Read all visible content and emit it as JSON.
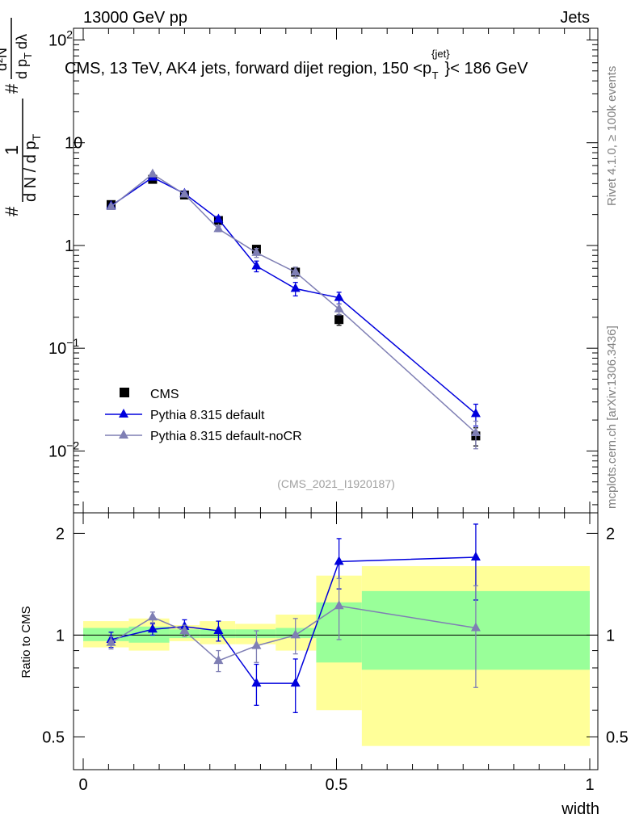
{
  "header": {
    "left": "13000 GeV pp",
    "right": "Jets",
    "title": "CMS, 13 TeV, AK4 jets, forward dijet region, 150 <p",
    "title_sup": "{jet}",
    "title_sub": "T",
    "title_end": "}< 186 GeV",
    "side_top": "Rivet 4.1.0, ≥ 100k events",
    "side_bottom": "mcplots.cern.ch [arXiv:1306.3436]",
    "analysis_tag": "(CMS_2021_I1920187)"
  },
  "y_axis_label": {
    "frac_num": "1",
    "frac_den_a": "d N / d p",
    "frac_den_sub": "T",
    "hash": "#",
    "num2": "d²N",
    "den2_a": "d p",
    "den2_b": "dλ",
    "sub_T": "T"
  },
  "ratio_ylabel": "Ratio to CMS",
  "xlabel": "width",
  "colors": {
    "data": "#000000",
    "default": "#0000dd",
    "nocr": "#7f7fb4",
    "band_inner": "#99ff99",
    "band_outer": "#ffff99"
  },
  "chart_data": [
    {
      "type": "scatter",
      "name": "main",
      "yscale": "log",
      "xlim": [
        0,
        1
      ],
      "ylim": [
        0.0025,
        130
      ],
      "y_ticks": [
        {
          "v": 0.01,
          "base": "10",
          "exp": "−2"
        },
        {
          "v": 0.1,
          "base": "10",
          "exp": "−1"
        },
        {
          "v": 1,
          "base": "1",
          "exp": ""
        },
        {
          "v": 10,
          "base": "10",
          "exp": ""
        },
        {
          "v": 100,
          "base": "10",
          "exp": "2"
        }
      ],
      "legend": {
        "placement": "lower-left",
        "entries": [
          "CMS",
          "Pythia 8.315 default",
          "Pythia 8.315 default-noCR"
        ]
      },
      "series": [
        {
          "name": "CMS",
          "style": "square",
          "x": [
            0.055,
            0.137,
            0.2,
            0.267,
            0.342,
            0.419,
            0.505,
            0.775
          ],
          "y": [
            2.5,
            4.4,
            3.1,
            1.75,
            0.92,
            0.55,
            0.19,
            0.014
          ],
          "err": [
            0.05,
            0.05,
            0.05,
            0.06,
            0.07,
            0.08,
            0.12,
            0.2
          ]
        },
        {
          "name": "Pythia 8.315 default",
          "style": "triangle",
          "x": [
            0.055,
            0.137,
            0.2,
            0.267,
            0.342,
            0.419,
            0.505,
            0.775
          ],
          "y": [
            2.43,
            4.6,
            3.2,
            1.8,
            0.63,
            0.38,
            0.31,
            0.023
          ],
          "err": [
            0.03,
            0.03,
            0.03,
            0.06,
            0.12,
            0.15,
            0.13,
            0.24
          ]
        },
        {
          "name": "Pythia 8.315 default-noCR",
          "style": "triangle",
          "x": [
            0.055,
            0.137,
            0.2,
            0.267,
            0.342,
            0.419,
            0.505,
            0.775
          ],
          "y": [
            2.38,
            4.95,
            3.15,
            1.45,
            0.85,
            0.55,
            0.24,
            0.015
          ],
          "err": [
            0.03,
            0.03,
            0.03,
            0.06,
            0.1,
            0.12,
            0.12,
            0.3
          ]
        }
      ]
    },
    {
      "type": "scatter",
      "name": "ratio",
      "ylabel": "Ratio to CMS",
      "xlabel": "width",
      "xlim": [
        0,
        1
      ],
      "ylim": [
        0.4,
        2.3
      ],
      "y_ticks": [
        0.5,
        1,
        2
      ],
      "x_ticks": [
        {
          "v": 0,
          "label": "0"
        },
        {
          "v": 0.5,
          "label": "0.5"
        },
        {
          "v": 1,
          "label": "1"
        }
      ],
      "bands": {
        "edges": [
          0,
          0.09,
          0.17,
          0.23,
          0.3,
          0.38,
          0.46,
          0.55,
          1.0
        ],
        "inner_lo": [
          0.96,
          0.95,
          0.98,
          0.98,
          0.98,
          0.98,
          0.83,
          0.79
        ],
        "inner_hi": [
          1.05,
          1.06,
          1.04,
          1.04,
          1.04,
          1.05,
          1.25,
          1.35
        ],
        "outer_lo": [
          0.92,
          0.9,
          0.96,
          0.94,
          0.94,
          0.9,
          0.6,
          0.47
        ],
        "outer_hi": [
          1.1,
          1.12,
          1.07,
          1.1,
          1.08,
          1.15,
          1.5,
          1.6
        ]
      },
      "series": [
        {
          "name": "Pythia 8.315 default",
          "x": [
            0.055,
            0.137,
            0.2,
            0.267,
            0.342,
            0.419,
            0.505,
            0.775
          ],
          "y": [
            0.97,
            1.04,
            1.06,
            1.03,
            0.72,
            0.72,
            1.65,
            1.7
          ],
          "err": [
            0.05,
            0.04,
            0.05,
            0.07,
            0.1,
            0.13,
            0.28,
            0.43
          ]
        },
        {
          "name": "Pythia 8.315 default-noCR",
          "x": [
            0.055,
            0.137,
            0.2,
            0.267,
            0.342,
            0.419,
            0.505,
            0.775
          ],
          "y": [
            0.95,
            1.13,
            1.03,
            0.84,
            0.93,
            1.0,
            1.22,
            1.05
          ],
          "err": [
            0.04,
            0.04,
            0.04,
            0.06,
            0.1,
            0.12,
            0.25,
            0.35
          ]
        }
      ]
    }
  ]
}
